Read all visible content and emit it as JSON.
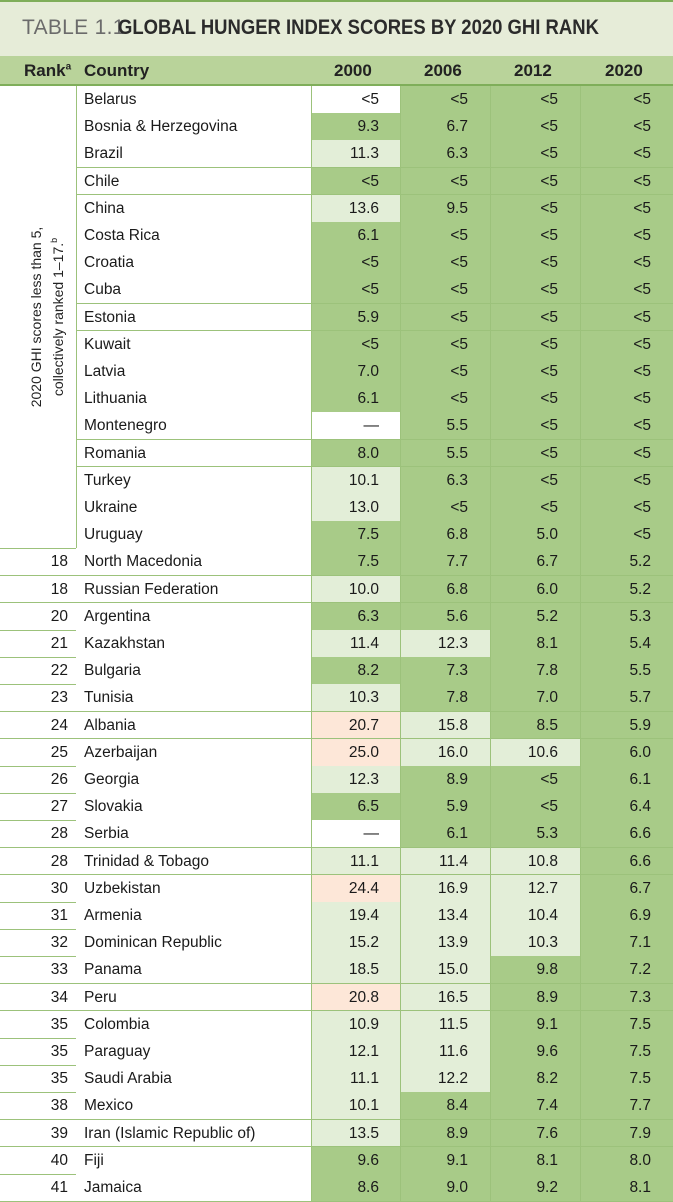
{
  "title": {
    "label": "TABLE 1.1",
    "text": "GLOBAL HUNGER INDEX SCORES BY 2020 GHI RANK"
  },
  "header": {
    "rank": "Rank",
    "rank_sup": "a",
    "country": "Country",
    "years": [
      "2000",
      "2006",
      "2012",
      "2020"
    ]
  },
  "side_label": {
    "line1": "2020 GHI scores less than 5,",
    "line2": "collectively ranked 1–17.",
    "sup": "b"
  },
  "colors": {
    "dark": "#a8cb88",
    "light": "#e3eed8",
    "orange": "#fde7d8",
    "white": "#ffffff"
  },
  "rows": [
    {
      "rank": "",
      "country": "Belarus",
      "vals": [
        "<5",
        "<5",
        "<5",
        "<5"
      ],
      "shade": [
        "white",
        "dark",
        "dark",
        "dark"
      ]
    },
    {
      "rank": "",
      "country": "Bosnia & Herzegovina",
      "vals": [
        "9.3",
        "6.7",
        "<5",
        "<5"
      ],
      "shade": [
        "dark",
        "dark",
        "dark",
        "dark"
      ]
    },
    {
      "rank": "",
      "country": "Brazil",
      "vals": [
        "11.3",
        "6.3",
        "<5",
        "<5"
      ],
      "shade": [
        "light",
        "dark",
        "dark",
        "dark"
      ]
    },
    {
      "rank": "",
      "country": "Chile",
      "vals": [
        "<5",
        "<5",
        "<5",
        "<5"
      ],
      "shade": [
        "dark",
        "dark",
        "dark",
        "dark"
      ]
    },
    {
      "rank": "",
      "country": "China",
      "vals": [
        "13.6",
        "9.5",
        "<5",
        "<5"
      ],
      "shade": [
        "light",
        "dark",
        "dark",
        "dark"
      ]
    },
    {
      "rank": "",
      "country": "Costa Rica",
      "vals": [
        "6.1",
        "<5",
        "<5",
        "<5"
      ],
      "shade": [
        "dark",
        "dark",
        "dark",
        "dark"
      ]
    },
    {
      "rank": "",
      "country": "Croatia",
      "vals": [
        "<5",
        "<5",
        "<5",
        "<5"
      ],
      "shade": [
        "dark",
        "dark",
        "dark",
        "dark"
      ]
    },
    {
      "rank": "",
      "country": "Cuba",
      "vals": [
        "<5",
        "<5",
        "<5",
        "<5"
      ],
      "shade": [
        "dark",
        "dark",
        "dark",
        "dark"
      ]
    },
    {
      "rank": "",
      "country": "Estonia",
      "vals": [
        "5.9",
        "<5",
        "<5",
        "<5"
      ],
      "shade": [
        "dark",
        "dark",
        "dark",
        "dark"
      ]
    },
    {
      "rank": "",
      "country": "Kuwait",
      "vals": [
        "<5",
        "<5",
        "<5",
        "<5"
      ],
      "shade": [
        "dark",
        "dark",
        "dark",
        "dark"
      ]
    },
    {
      "rank": "",
      "country": "Latvia",
      "vals": [
        "7.0",
        "<5",
        "<5",
        "<5"
      ],
      "shade": [
        "dark",
        "dark",
        "dark",
        "dark"
      ]
    },
    {
      "rank": "",
      "country": "Lithuania",
      "vals": [
        "6.1",
        "<5",
        "<5",
        "<5"
      ],
      "shade": [
        "dark",
        "dark",
        "dark",
        "dark"
      ]
    },
    {
      "rank": "",
      "country": "Montenegro",
      "vals": [
        "—",
        "5.5",
        "<5",
        "<5"
      ],
      "shade": [
        "white",
        "dark",
        "dark",
        "dark"
      ]
    },
    {
      "rank": "",
      "country": "Romania",
      "vals": [
        "8.0",
        "5.5",
        "<5",
        "<5"
      ],
      "shade": [
        "dark",
        "dark",
        "dark",
        "dark"
      ]
    },
    {
      "rank": "",
      "country": "Turkey",
      "vals": [
        "10.1",
        "6.3",
        "<5",
        "<5"
      ],
      "shade": [
        "light",
        "dark",
        "dark",
        "dark"
      ]
    },
    {
      "rank": "",
      "country": "Ukraine",
      "vals": [
        "13.0",
        "<5",
        "<5",
        "<5"
      ],
      "shade": [
        "light",
        "dark",
        "dark",
        "dark"
      ]
    },
    {
      "rank": "",
      "country": "Uruguay",
      "vals": [
        "7.5",
        "6.8",
        "5.0",
        "<5"
      ],
      "shade": [
        "dark",
        "dark",
        "dark",
        "dark"
      ]
    },
    {
      "rank": "18",
      "country": "North Macedonia",
      "vals": [
        "7.5",
        "7.7",
        "6.7",
        "5.2"
      ],
      "shade": [
        "dark",
        "dark",
        "dark",
        "dark"
      ]
    },
    {
      "rank": "18",
      "country": "Russian Federation",
      "vals": [
        "10.0",
        "6.8",
        "6.0",
        "5.2"
      ],
      "shade": [
        "light",
        "dark",
        "dark",
        "dark"
      ]
    },
    {
      "rank": "20",
      "country": "Argentina",
      "vals": [
        "6.3",
        "5.6",
        "5.2",
        "5.3"
      ],
      "shade": [
        "dark",
        "dark",
        "dark",
        "dark"
      ]
    },
    {
      "rank": "21",
      "country": "Kazakhstan",
      "vals": [
        "11.4",
        "12.3",
        "8.1",
        "5.4"
      ],
      "shade": [
        "light",
        "light",
        "dark",
        "dark"
      ]
    },
    {
      "rank": "22",
      "country": "Bulgaria",
      "vals": [
        "8.2",
        "7.3",
        "7.8",
        "5.5"
      ],
      "shade": [
        "dark",
        "dark",
        "dark",
        "dark"
      ]
    },
    {
      "rank": "23",
      "country": "Tunisia",
      "vals": [
        "10.3",
        "7.8",
        "7.0",
        "5.7"
      ],
      "shade": [
        "light",
        "dark",
        "dark",
        "dark"
      ]
    },
    {
      "rank": "24",
      "country": "Albania",
      "vals": [
        "20.7",
        "15.8",
        "8.5",
        "5.9"
      ],
      "shade": [
        "orange",
        "light",
        "dark",
        "dark"
      ]
    },
    {
      "rank": "25",
      "country": "Azerbaijan",
      "vals": [
        "25.0",
        "16.0",
        "10.6",
        "6.0"
      ],
      "shade": [
        "orange",
        "light",
        "light",
        "dark"
      ]
    },
    {
      "rank": "26",
      "country": "Georgia",
      "vals": [
        "12.3",
        "8.9",
        "<5",
        "6.1"
      ],
      "shade": [
        "light",
        "dark",
        "dark",
        "dark"
      ]
    },
    {
      "rank": "27",
      "country": "Slovakia",
      "vals": [
        "6.5",
        "5.9",
        "<5",
        "6.4"
      ],
      "shade": [
        "dark",
        "dark",
        "dark",
        "dark"
      ]
    },
    {
      "rank": "28",
      "country": "Serbia",
      "vals": [
        "—",
        "6.1",
        "5.3",
        "6.6"
      ],
      "shade": [
        "white",
        "dark",
        "dark",
        "dark"
      ]
    },
    {
      "rank": "28",
      "country": "Trinidad & Tobago",
      "vals": [
        "11.1",
        "11.4",
        "10.8",
        "6.6"
      ],
      "shade": [
        "light",
        "light",
        "light",
        "dark"
      ]
    },
    {
      "rank": "30",
      "country": "Uzbekistan",
      "vals": [
        "24.4",
        "16.9",
        "12.7",
        "6.7"
      ],
      "shade": [
        "orange",
        "light",
        "light",
        "dark"
      ]
    },
    {
      "rank": "31",
      "country": "Armenia",
      "vals": [
        "19.4",
        "13.4",
        "10.4",
        "6.9"
      ],
      "shade": [
        "light",
        "light",
        "light",
        "dark"
      ]
    },
    {
      "rank": "32",
      "country": "Dominican Republic",
      "vals": [
        "15.2",
        "13.9",
        "10.3",
        "7.1"
      ],
      "shade": [
        "light",
        "light",
        "light",
        "dark"
      ]
    },
    {
      "rank": "33",
      "country": "Panama",
      "vals": [
        "18.5",
        "15.0",
        "9.8",
        "7.2"
      ],
      "shade": [
        "light",
        "light",
        "dark",
        "dark"
      ]
    },
    {
      "rank": "34",
      "country": "Peru",
      "vals": [
        "20.8",
        "16.5",
        "8.9",
        "7.3"
      ],
      "shade": [
        "orange",
        "light",
        "dark",
        "dark"
      ]
    },
    {
      "rank": "35",
      "country": "Colombia",
      "vals": [
        "10.9",
        "11.5",
        "9.1",
        "7.5"
      ],
      "shade": [
        "light",
        "light",
        "dark",
        "dark"
      ]
    },
    {
      "rank": "35",
      "country": "Paraguay",
      "vals": [
        "12.1",
        "11.6",
        "9.6",
        "7.5"
      ],
      "shade": [
        "light",
        "light",
        "dark",
        "dark"
      ]
    },
    {
      "rank": "35",
      "country": "Saudi Arabia",
      "vals": [
        "11.1",
        "12.2",
        "8.2",
        "7.5"
      ],
      "shade": [
        "light",
        "light",
        "dark",
        "dark"
      ]
    },
    {
      "rank": "38",
      "country": "Mexico",
      "vals": [
        "10.1",
        "8.4",
        "7.4",
        "7.7"
      ],
      "shade": [
        "light",
        "dark",
        "dark",
        "dark"
      ]
    },
    {
      "rank": "39",
      "country": "Iran (Islamic Republic of)",
      "vals": [
        "13.5",
        "8.9",
        "7.6",
        "7.9"
      ],
      "shade": [
        "light",
        "dark",
        "dark",
        "dark"
      ]
    },
    {
      "rank": "40",
      "country": "Fiji",
      "vals": [
        "9.6",
        "9.1",
        "8.1",
        "8.0"
      ],
      "shade": [
        "dark",
        "dark",
        "dark",
        "dark"
      ]
    },
    {
      "rank": "41",
      "country": "Jamaica",
      "vals": [
        "8.6",
        "9.0",
        "9.2",
        "8.1"
      ],
      "shade": [
        "dark",
        "dark",
        "dark",
        "dark"
      ]
    }
  ]
}
